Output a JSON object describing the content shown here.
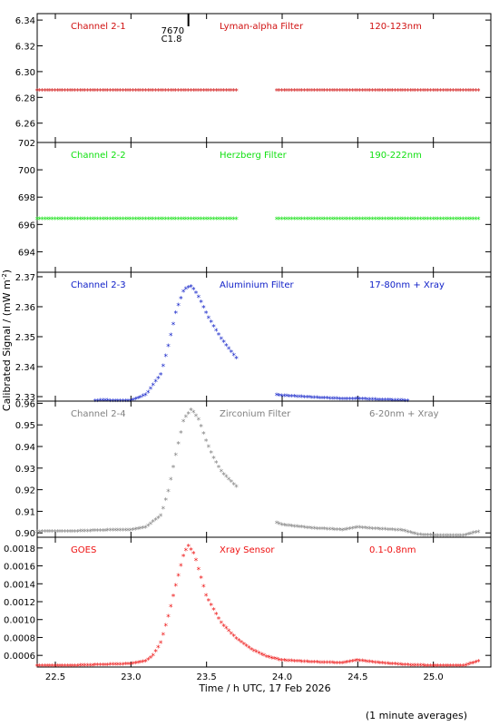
{
  "figure": {
    "xlabel": "Time / h UTC, 17 Feb 2026",
    "ylabel": "Calibrated Signal / (mW m",
    "ylabel_sup": "-2",
    "ylabel_close": ")",
    "footnote": "(1 minute averages)",
    "xlim": [
      22.38,
      25.38
    ],
    "xticks": [
      "22.5",
      "23.0",
      "23.5",
      "24.0",
      "24.5",
      "25.0"
    ],
    "flare_marker": {
      "x": 23.38,
      "label_number": "7670",
      "label_class": "C1.8"
    }
  },
  "chart_data": [
    {
      "type": "scatter",
      "channel": "Channel 2-1",
      "filter": "Lyman-alpha Filter",
      "band": "120-123nm",
      "color": "#d01010",
      "ylim": [
        6.245,
        6.345
      ],
      "yticks": [
        "6.26",
        "6.28",
        "6.30",
        "6.32",
        "6.34"
      ],
      "gaps": [
        [
          23.7,
          23.95
        ]
      ],
      "series": [
        {
          "x": [
            22.38,
            23.0,
            23.7,
            23.95,
            24.0,
            24.5,
            25.0,
            25.3
          ],
          "y": [
            6.285,
            6.285,
            6.285,
            6.285,
            6.285,
            6.285,
            6.285,
            6.285
          ]
        }
      ]
    },
    {
      "type": "scatter",
      "channel": "Channel 2-2",
      "filter": "Herzberg Filter",
      "band": "190-222nm",
      "color": "#10e010",
      "ylim": [
        692.5,
        702
      ],
      "yticks": [
        "694",
        "696",
        "698",
        "700",
        "702"
      ],
      "gaps": [
        [
          23.7,
          23.95
        ]
      ],
      "series": [
        {
          "x": [
            22.38,
            23.0,
            23.7,
            23.95,
            24.0,
            24.5,
            25.0,
            25.3
          ],
          "y": [
            696.4,
            696.4,
            696.4,
            696.4,
            696.4,
            696.4,
            696.4,
            696.4
          ]
        }
      ]
    },
    {
      "type": "scatter",
      "channel": "Channel 2-3",
      "filter": "Aluminium Filter",
      "band": "17-80nm + Xray",
      "color": "#1020c8",
      "ylim": [
        2.3285,
        2.3715
      ],
      "yticks": [
        "2.33",
        "2.34",
        "2.35",
        "2.36",
        "2.37"
      ],
      "gaps": [
        [
          23.7,
          23.95
        ]
      ],
      "series": [
        {
          "x": [
            22.38,
            22.6,
            22.8,
            23.0,
            23.1,
            23.2,
            23.25,
            23.3,
            23.35,
            23.4,
            23.45,
            23.5,
            23.55,
            23.6,
            23.7,
            23.95,
            24.0,
            24.2,
            24.4,
            24.5,
            24.6,
            24.8,
            24.9,
            25.0,
            25.2,
            25.3
          ],
          "y": [
            2.3282,
            2.3282,
            2.3286,
            2.3285,
            2.3305,
            2.3375,
            2.3475,
            2.3585,
            2.3655,
            2.3668,
            2.363,
            2.3575,
            2.353,
            2.349,
            2.3425,
            2.3305,
            2.3302,
            2.3296,
            2.3291,
            2.3292,
            2.3289,
            2.3286,
            2.3283,
            2.3278,
            2.3278,
            2.3285
          ]
        }
      ]
    },
    {
      "type": "scatter",
      "channel": "Channel 2-4",
      "filter": "Zirconium Filter",
      "band": "6-20nm + Xray",
      "color": "#808080",
      "ylim": [
        0.898,
        0.961
      ],
      "yticks": [
        "0.90",
        "0.91",
        "0.92",
        "0.93",
        "0.94",
        "0.95",
        "0.96"
      ],
      "gaps": [
        [
          23.7,
          23.95
        ]
      ],
      "series": [
        {
          "x": [
            22.38,
            22.6,
            22.8,
            23.0,
            23.1,
            23.2,
            23.25,
            23.3,
            23.35,
            23.4,
            23.45,
            23.5,
            23.55,
            23.6,
            23.7,
            23.95,
            24.0,
            24.2,
            24.4,
            24.5,
            24.6,
            24.8,
            24.9,
            25.0,
            25.2,
            25.3
          ],
          "y": [
            0.9004,
            0.9005,
            0.901,
            0.9012,
            0.9025,
            0.908,
            0.92,
            0.937,
            0.9525,
            0.957,
            0.952,
            0.942,
            0.934,
            0.928,
            0.921,
            0.905,
            0.9035,
            0.902,
            0.9012,
            0.9025,
            0.9018,
            0.901,
            0.899,
            0.8987,
            0.8987,
            0.9004
          ]
        }
      ]
    },
    {
      "type": "scatter",
      "channel": "GOES",
      "filter": "Xray Sensor",
      "band": "0.1-0.8nm",
      "color": "#ee1010",
      "ylim": [
        0.00047,
        0.00192
      ],
      "yticks": [
        "0.0006",
        "0.0008",
        "0.0010",
        "0.0012",
        "0.0014",
        "0.0016",
        "0.0018"
      ],
      "gaps": [],
      "series": [
        {
          "x": [
            22.38,
            22.6,
            22.8,
            23.0,
            23.1,
            23.15,
            23.2,
            23.25,
            23.3,
            23.35,
            23.38,
            23.42,
            23.5,
            23.6,
            23.7,
            23.8,
            23.9,
            24.0,
            24.2,
            24.4,
            24.5,
            24.6,
            24.8,
            25.0,
            25.2,
            25.3
          ],
          "y": [
            0.00048,
            0.00048,
            0.00049,
            0.0005,
            0.00053,
            0.0006,
            0.00075,
            0.00105,
            0.0014,
            0.00173,
            0.00182,
            0.00172,
            0.00125,
            0.00095,
            0.00078,
            0.00066,
            0.00058,
            0.00054,
            0.00052,
            0.00051,
            0.00054,
            0.00052,
            0.00049,
            0.00048,
            0.00048,
            0.00053
          ]
        }
      ]
    }
  ]
}
